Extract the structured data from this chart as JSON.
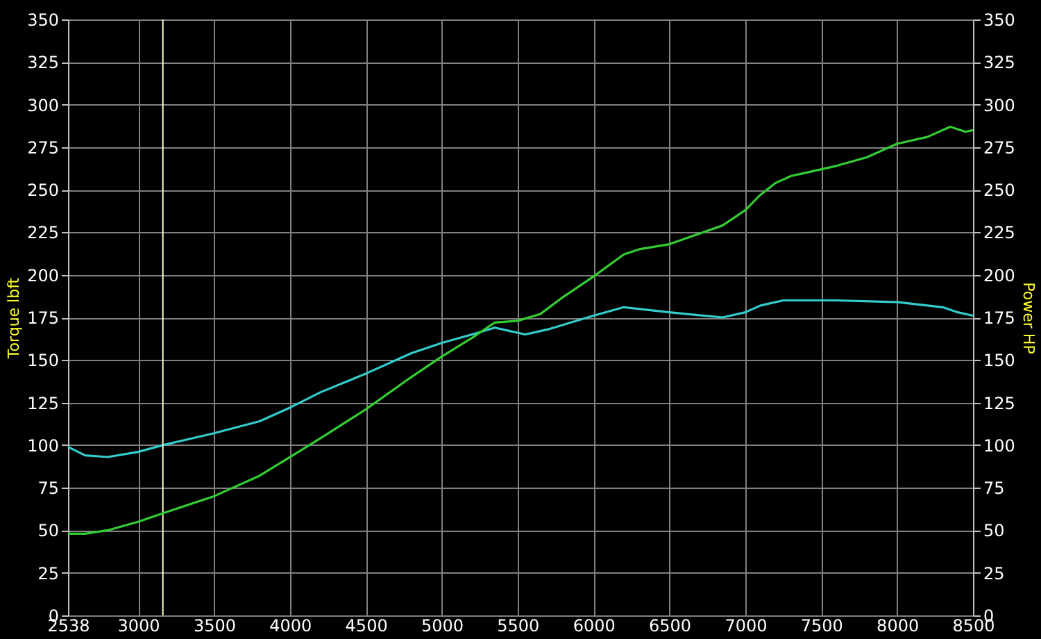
{
  "chart_data": {
    "type": "line",
    "ylabel": "Torque lbft",
    "y2label": "Power HP",
    "xlim": [
      2538,
      8500
    ],
    "xticks": [
      2538,
      3000,
      3500,
      4000,
      4500,
      5000,
      5500,
      6000,
      6500,
      7000,
      7500,
      8000,
      8500
    ],
    "ylim": [
      0,
      350
    ],
    "yticks": [
      0,
      25,
      50,
      75,
      100,
      125,
      150,
      175,
      200,
      225,
      250,
      275,
      300,
      325,
      350
    ],
    "y2lim": [
      0,
      350
    ],
    "y2ticks": [
      0,
      25,
      50,
      75,
      100,
      125,
      150,
      175,
      200,
      225,
      250,
      275,
      300,
      325,
      350
    ],
    "grid": true,
    "marker": "none",
    "line_style": "solid",
    "ref_lines": [
      {
        "axis": "x",
        "value": 3163,
        "color": "#ffffcc"
      }
    ],
    "series": [
      {
        "color": "#33cccc",
        "x": [
          2538,
          2650,
          2800,
          3000,
          3163,
          3500,
          3800,
          4000,
          4200,
          4500,
          4800,
          5000,
          5200,
          5350,
          5450,
          5550,
          5700,
          6000,
          6200,
          6500,
          6850,
          7000,
          7100,
          7250,
          7400,
          7600,
          8000,
          8300,
          8400,
          8500
        ],
        "values": [
          99,
          94,
          93,
          96,
          100,
          107,
          114,
          122,
          131,
          142,
          154,
          160,
          165,
          169,
          167,
          165,
          168,
          176,
          181,
          178,
          175,
          178,
          182,
          185,
          185,
          185,
          184,
          181,
          178,
          176
        ]
      },
      {
        "color": "#33cc33",
        "axis": "y2",
        "x": [
          2538,
          2650,
          2800,
          3000,
          3163,
          3500,
          3800,
          4000,
          4200,
          4500,
          4800,
          5000,
          5200,
          5350,
          5500,
          5650,
          5800,
          6000,
          6200,
          6300,
          6500,
          6850,
          7000,
          7100,
          7200,
          7300,
          7400,
          7600,
          7800,
          8000,
          8200,
          8350,
          8450,
          8500
        ],
        "values": [
          48,
          48,
          50,
          55,
          60,
          70,
          82,
          93,
          104,
          121,
          140,
          152,
          163,
          172,
          173,
          177,
          187,
          199,
          212,
          215,
          218,
          229,
          238,
          247,
          254,
          258,
          260,
          264,
          269,
          277,
          281,
          287,
          284,
          285
        ]
      }
    ]
  }
}
